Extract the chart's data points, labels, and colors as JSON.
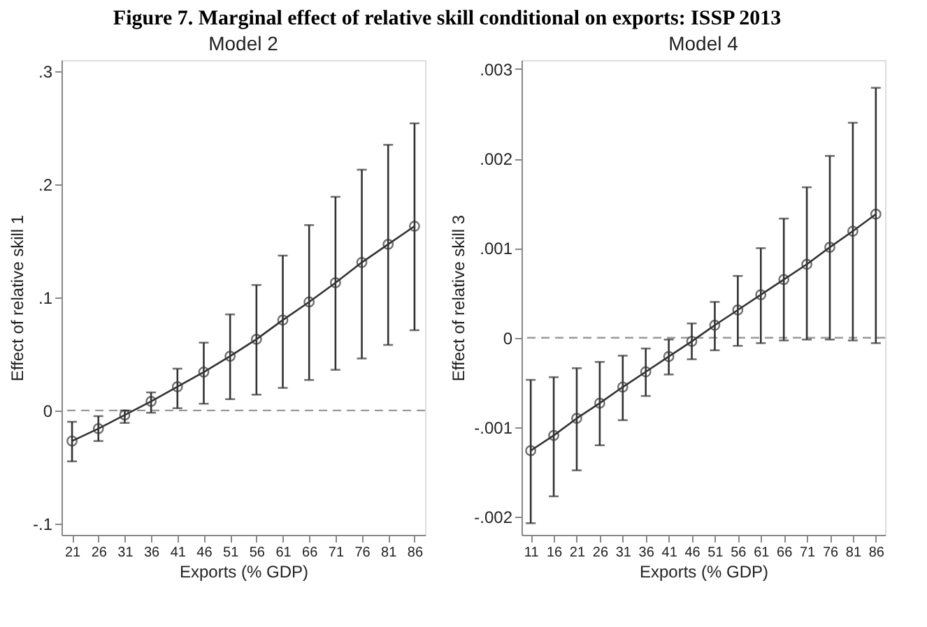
{
  "chart_data": [
    {
      "type": "line",
      "title": "Model 2",
      "annotations": [
        "Figure 7. Marginal effect of relative skill conditional on exports: ISSP 2013"
      ],
      "xlabel": "Exports (% GDP)",
      "ylabel": "Effect of relative skill 1",
      "x": [
        21,
        26,
        31,
        36,
        41,
        46,
        51,
        56,
        61,
        66,
        71,
        76,
        81,
        86
      ],
      "series": [
        {
          "color": "#333333",
          "values": [
            -0.027,
            -0.016,
            -0.004,
            0.008,
            0.021,
            0.034,
            0.048,
            0.063,
            0.08,
            0.096,
            0.113,
            0.131,
            0.147,
            0.163
          ],
          "errors": [
            [
              -0.045,
              -0.01
            ],
            [
              -0.027,
              -0.005
            ],
            [
              -0.011,
              0.0
            ],
            [
              -0.002,
              0.016
            ],
            [
              0.002,
              0.037
            ],
            [
              0.006,
              0.06
            ],
            [
              0.01,
              0.085
            ],
            [
              0.014,
              0.111
            ],
            [
              0.02,
              0.137
            ],
            [
              0.027,
              0.164
            ],
            [
              0.036,
              0.189
            ],
            [
              0.046,
              0.213
            ],
            [
              0.058,
              0.235
            ],
            [
              0.071,
              0.254
            ]
          ]
        }
      ],
      "marker": "circle",
      "line_style": "solid",
      "grid": false,
      "xlim": [
        19,
        88
      ],
      "xticks": [
        21,
        26,
        31,
        36,
        41,
        46,
        51,
        56,
        61,
        66,
        71,
        76,
        81,
        86
      ],
      "ylim": [
        -0.11,
        0.31
      ],
      "yticks": [
        {
          "value": -0.1,
          "label": "-.1"
        },
        0,
        {
          "value": 0.1,
          "label": ".1"
        },
        {
          "value": 0.2,
          "label": ".2"
        },
        {
          "value": 0.3,
          "label": ".3"
        }
      ],
      "ref_lines": [
        {
          "axis": "y",
          "value": 0,
          "color": "#999999",
          "line_style": "dashed"
        }
      ]
    },
    {
      "type": "line",
      "title": "Model 4",
      "xlabel": "Exports (% GDP)",
      "ylabel": "Effect of relative skill 3",
      "x": [
        11,
        16,
        21,
        26,
        31,
        36,
        41,
        46,
        51,
        56,
        61,
        66,
        71,
        76,
        81,
        86
      ],
      "series": [
        {
          "color": "#333333",
          "values": [
            -0.00126,
            -0.00109,
            -0.0009,
            -0.00073,
            -0.00055,
            -0.00038,
            -0.00021,
            -4e-05,
            0.00014,
            0.00031,
            0.00048,
            0.00065,
            0.00082,
            0.00101,
            0.00119,
            0.00138
          ],
          "errors": [
            [
              -0.00207,
              -0.00047
            ],
            [
              -0.00177,
              -0.00044
            ],
            [
              -0.00148,
              -0.00034
            ],
            [
              -0.0012,
              -0.00027
            ],
            [
              -0.00092,
              -0.0002
            ],
            [
              -0.00065,
              -0.00012
            ],
            [
              -0.00041,
              -2e-05
            ],
            [
              -0.00024,
              0.00016
            ],
            [
              -0.00014,
              0.0004
            ],
            [
              -9e-05,
              0.00069
            ],
            [
              -6e-05,
              0.001
            ],
            [
              -3e-05,
              0.00133
            ],
            [
              -2e-05,
              0.00168
            ],
            [
              -2e-05,
              0.00203
            ],
            [
              -3e-05,
              0.0024
            ],
            [
              -6e-05,
              0.00279
            ]
          ]
        }
      ],
      "marker": "circle",
      "line_style": "solid",
      "grid": false,
      "xlim": [
        9,
        88
      ],
      "xticks": [
        11,
        16,
        21,
        26,
        31,
        36,
        41,
        46,
        51,
        56,
        61,
        66,
        71,
        76,
        81,
        86
      ],
      "ylim": [
        -0.0022,
        0.0031
      ],
      "yticks": [
        {
          "value": -0.002,
          "label": "-.002"
        },
        {
          "value": -0.001,
          "label": "-.001"
        },
        0,
        {
          "value": 0.001,
          "label": ".001"
        },
        {
          "value": 0.002,
          "label": ".002"
        },
        {
          "value": 0.003,
          "label": ".003"
        }
      ],
      "ref_lines": [
        {
          "axis": "y",
          "value": 0,
          "color": "#999999",
          "line_style": "dashed"
        }
      ]
    }
  ]
}
